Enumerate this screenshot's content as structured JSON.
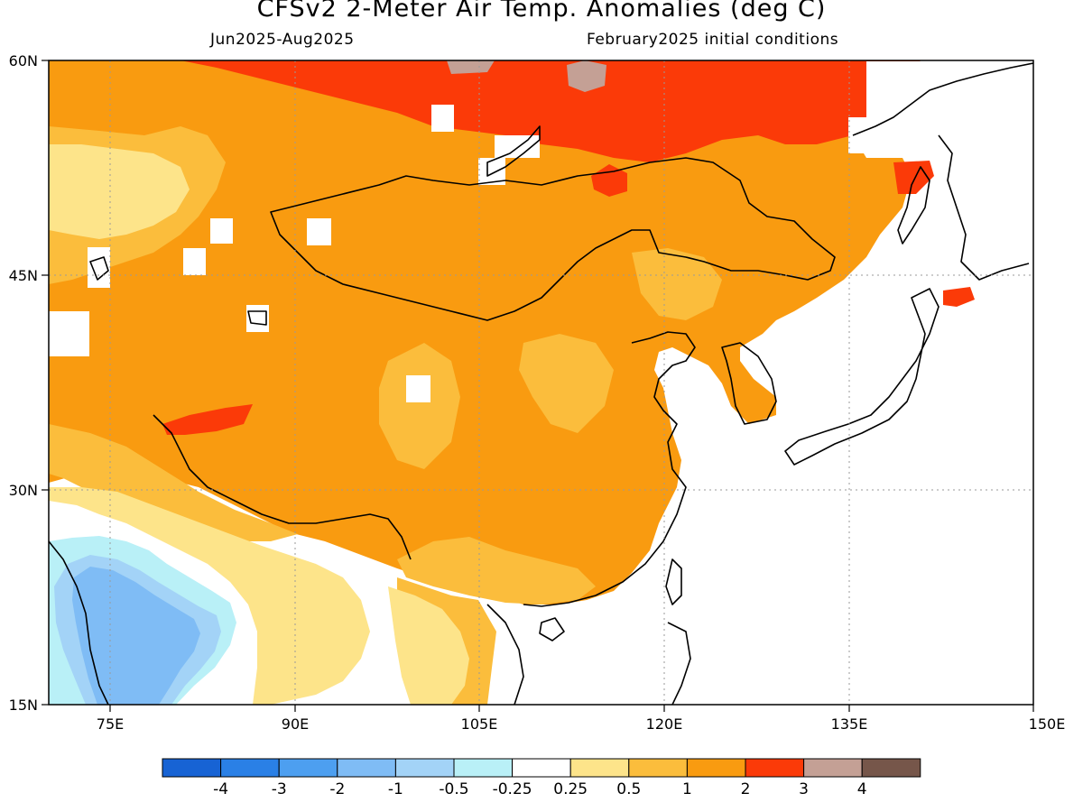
{
  "header": {
    "title": "CFSv2 2-Meter Air Temp. Anomalies (deg C)",
    "period": "Jun2025-Aug2025",
    "init": "February2025 initial conditions"
  },
  "map": {
    "lon_range": [
      70,
      150
    ],
    "lat_range": [
      15,
      60
    ],
    "x_ticks": [
      "75E",
      "90E",
      "105E",
      "120E",
      "135E",
      "150E"
    ],
    "y_ticks": [
      "60N",
      "45N",
      "30N",
      "15N"
    ],
    "gridlines": "dotted"
  },
  "legend": {
    "labels": [
      "-4",
      "-3",
      "-2",
      "-1",
      "-0.5",
      "-0.25",
      "0.25",
      "0.5",
      "1",
      "2",
      "3",
      "4"
    ],
    "colors": [
      "#1763d4",
      "#2a80e6",
      "#4d9ff0",
      "#7fbcf5",
      "#a3d3f7",
      "#b9f0f7",
      "#ffffff",
      "#fde48a",
      "#fbbd3c",
      "#f99b10",
      "#fb3a08",
      "#c4a095",
      "#76564a"
    ]
  }
}
